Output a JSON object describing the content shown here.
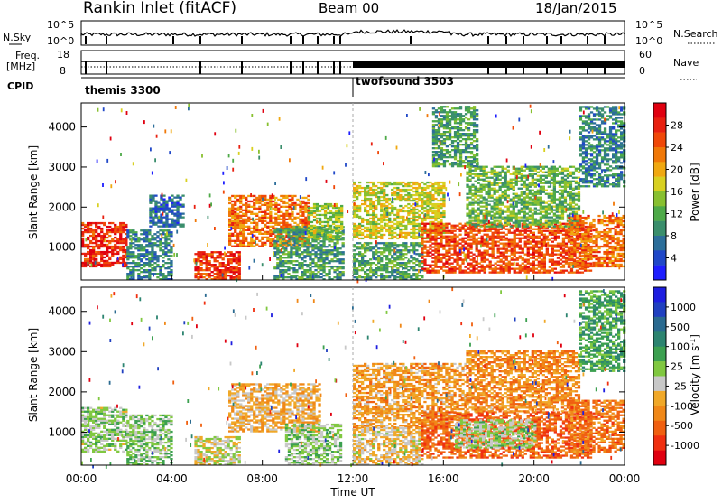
{
  "header": {
    "station": "Rankin Inlet (fitACF)",
    "beam": "Beam 00",
    "date": "18/Jan/2015"
  },
  "noise_panel": {
    "left_label": "N.Sky",
    "right_label": "N.Search",
    "left_ticks": [
      "10^5",
      "10^0"
    ],
    "right_ticks": [
      "10^5",
      "10^0"
    ]
  },
  "freq_panel": {
    "left_label_1": "Freq.",
    "left_label_2": "[MHz]",
    "right_label": "Nave",
    "left_ticks": [
      "18",
      "8"
    ],
    "right_ticks": [
      "60",
      "0"
    ]
  },
  "cpid": {
    "label": "CPID",
    "modes": [
      {
        "name": "themis 3300",
        "start_hour": 0
      },
      {
        "name": "twofsound 3503",
        "start_hour": 12
      }
    ]
  },
  "x_axis": {
    "label": "Time UT",
    "ticks": [
      "00:00",
      "04:00",
      "08:00",
      "12:00",
      "16:00",
      "20:00",
      "00:00"
    ]
  },
  "chart_data": [
    {
      "type": "heatmap",
      "name": "power",
      "ylabel": "Slant Range [km]",
      "yticks": [
        "1000",
        "2000",
        "3000",
        "4000"
      ],
      "ylim": [
        180,
        4600
      ],
      "xlim": [
        0,
        24
      ],
      "colorbar": {
        "label": "Power [dB]",
        "ticks": [
          "28",
          "24",
          "20",
          "16",
          "12",
          "8",
          "4"
        ],
        "range": [
          0,
          30
        ],
        "colors": [
          "#1e1eff",
          "#2048c8",
          "#2c6e9a",
          "#3a8e6c",
          "#4eaa48",
          "#88c030",
          "#d8d020",
          "#f0a810",
          "#f07808",
          "#f04808",
          "#e82010",
          "#e00010"
        ]
      },
      "regions": [
        {
          "t0": 0.0,
          "t1": 2.0,
          "r0": 500,
          "r1": 1600,
          "v": 26
        },
        {
          "t0": 2.0,
          "t1": 4.0,
          "r0": 180,
          "r1": 1400,
          "v": 8
        },
        {
          "t0": 3.0,
          "t1": 4.5,
          "r0": 1500,
          "r1": 2300,
          "v": 6
        },
        {
          "t0": 5.0,
          "t1": 7.0,
          "r0": 180,
          "r1": 900,
          "v": 25
        },
        {
          "t0": 6.5,
          "t1": 10.0,
          "r0": 1000,
          "r1": 2300,
          "v": 22
        },
        {
          "t0": 8.5,
          "t1": 11.5,
          "r0": 180,
          "r1": 1500,
          "v": 10
        },
        {
          "t0": 10.0,
          "t1": 11.5,
          "r0": 1200,
          "r1": 2100,
          "v": 14
        },
        {
          "t0": 12.0,
          "t1": 16.0,
          "r0": 1200,
          "r1": 2600,
          "v": 16
        },
        {
          "t0": 12.0,
          "t1": 15.0,
          "r0": 180,
          "r1": 1100,
          "v": 10
        },
        {
          "t0": 15.0,
          "t1": 22.5,
          "r0": 350,
          "r1": 1600,
          "v": 24
        },
        {
          "t0": 17.0,
          "t1": 22.0,
          "r0": 1500,
          "r1": 3000,
          "v": 12
        },
        {
          "t0": 21.5,
          "t1": 24.0,
          "r0": 500,
          "r1": 1800,
          "v": 22
        },
        {
          "t0": 15.5,
          "t1": 17.5,
          "r0": 3000,
          "r1": 4500,
          "v": 10
        },
        {
          "t0": 22.0,
          "t1": 24.0,
          "r0": 2500,
          "r1": 4500,
          "v": 8
        }
      ]
    },
    {
      "type": "heatmap",
      "name": "velocity",
      "ylabel": "Slant Range [km]",
      "yticks": [
        "1000",
        "2000",
        "3000",
        "4000"
      ],
      "ylim": [
        180,
        4600
      ],
      "xlim": [
        0,
        24
      ],
      "colorbar": {
        "label": "Velocity [m s^-1]",
        "ticks": [
          "1000",
          "500",
          "100",
          "25",
          "-25",
          "-100",
          "-500",
          "-1000"
        ],
        "range": [
          -1200,
          1200
        ],
        "colors": [
          "#e00010",
          "#f03010",
          "#f06010",
          "#f08818",
          "#f0a828",
          "#c8c8c8",
          "#80c840",
          "#3ca050",
          "#2c8470",
          "#2a6a90",
          "#2040c0",
          "#1e1ee0"
        ]
      },
      "regions": [
        {
          "t0": 0.0,
          "t1": 2.0,
          "r0": 500,
          "r1": 1600,
          "v": 40
        },
        {
          "t0": 2.0,
          "t1": 4.0,
          "r0": 180,
          "r1": 1400,
          "v": 80
        },
        {
          "t0": 5.0,
          "t1": 7.0,
          "r0": 180,
          "r1": 900,
          "v": -80
        },
        {
          "t0": 6.5,
          "t1": 10.5,
          "r0": 1000,
          "r1": 2200,
          "v": -300
        },
        {
          "t0": 9.0,
          "t1": 11.5,
          "r0": 180,
          "r1": 1200,
          "v": 60
        },
        {
          "t0": 12.0,
          "t1": 17.0,
          "r0": 1100,
          "r1": 2700,
          "v": -400
        },
        {
          "t0": 12.0,
          "t1": 15.0,
          "r0": 180,
          "r1": 1100,
          "v": -200
        },
        {
          "t0": 15.0,
          "t1": 22.5,
          "r0": 350,
          "r1": 1500,
          "v": -700
        },
        {
          "t0": 16.5,
          "t1": 20.0,
          "r0": 600,
          "r1": 1300,
          "v": 10
        },
        {
          "t0": 17.0,
          "t1": 22.0,
          "r0": 1500,
          "r1": 3000,
          "v": -500
        },
        {
          "t0": 21.5,
          "t1": 24.0,
          "r0": 500,
          "r1": 1800,
          "v": -600
        },
        {
          "t0": 22.0,
          "t1": 24.0,
          "r0": 2500,
          "r1": 4500,
          "v": 300
        }
      ]
    }
  ]
}
